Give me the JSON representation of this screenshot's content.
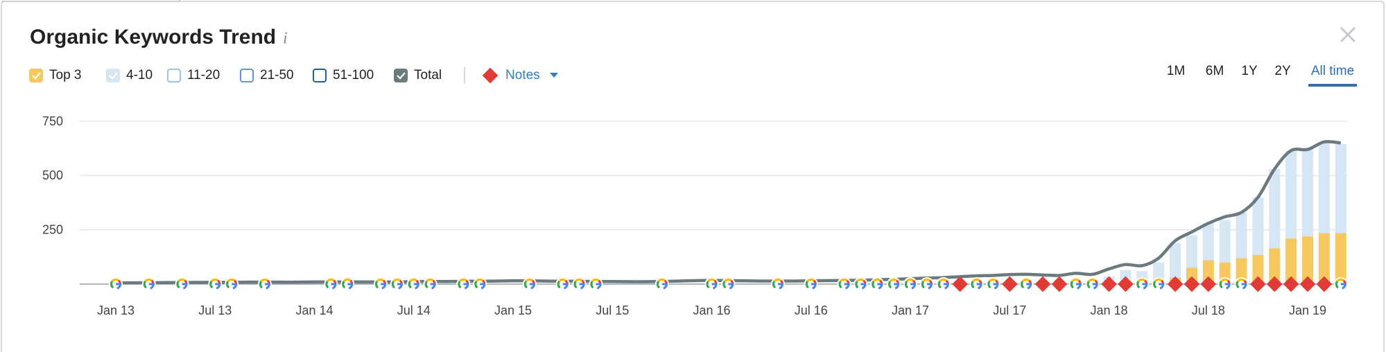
{
  "title": "Organic Keywords Trend",
  "info_icon": "i",
  "notes_label": "Notes",
  "ranges": [
    "1M",
    "6M",
    "1Y",
    "2Y",
    "All time"
  ],
  "selected_range": 4,
  "chart_data": {
    "type": "stacked-bar-line",
    "x": [
      "2013-01",
      "2013-02",
      "2013-03",
      "2013-04",
      "2013-05",
      "2013-06",
      "2013-07",
      "2013-08",
      "2013-09",
      "2013-10",
      "2013-11",
      "2013-12",
      "2014-01",
      "2014-02",
      "2014-03",
      "2014-04",
      "2014-05",
      "2014-06",
      "2014-07",
      "2014-08",
      "2014-09",
      "2014-10",
      "2014-11",
      "2014-12",
      "2015-01",
      "2015-02",
      "2015-03",
      "2015-04",
      "2015-05",
      "2015-06",
      "2015-07",
      "2015-08",
      "2015-09",
      "2015-10",
      "2015-11",
      "2015-12",
      "2016-01",
      "2016-02",
      "2016-03",
      "2016-04",
      "2016-05",
      "2016-06",
      "2016-07",
      "2016-08",
      "2016-09",
      "2016-10",
      "2016-11",
      "2016-12",
      "2017-01",
      "2017-02",
      "2017-03",
      "2017-04",
      "2017-05",
      "2017-06",
      "2017-07",
      "2017-08",
      "2017-09",
      "2017-10",
      "2017-11",
      "2017-12",
      "2018-01",
      "2018-02",
      "2018-03",
      "2018-04",
      "2018-05",
      "2018-06",
      "2018-07",
      "2018-08",
      "2018-09",
      "2018-10",
      "2018-11",
      "2018-12",
      "2019-01",
      "2019-02",
      "2019-03"
    ],
    "xticks": [
      {
        "value": "2013-01",
        "label": "Jan 13"
      },
      {
        "value": "2013-07",
        "label": "Jul 13"
      },
      {
        "value": "2014-01",
        "label": "Jan 14"
      },
      {
        "value": "2014-07",
        "label": "Jul 14"
      },
      {
        "value": "2015-01",
        "label": "Jan 15"
      },
      {
        "value": "2015-07",
        "label": "Jul 15"
      },
      {
        "value": "2016-01",
        "label": "Jan 16"
      },
      {
        "value": "2016-07",
        "label": "Jul 16"
      },
      {
        "value": "2017-01",
        "label": "Jan 17"
      },
      {
        "value": "2017-07",
        "label": "Jul 17"
      },
      {
        "value": "2018-01",
        "label": "Jan 18"
      },
      {
        "value": "2018-07",
        "label": "Jul 18"
      },
      {
        "value": "2019-01",
        "label": "Jan 19"
      }
    ],
    "ylim": [
      0,
      750
    ],
    "yticks": [
      250,
      500,
      750
    ],
    "grid": true,
    "series": [
      {
        "name": "Top 3",
        "color": "#f6c85f",
        "kind": "bar",
        "checked": true,
        "values": [
          0,
          0,
          0,
          0,
          0,
          0,
          0,
          0,
          0,
          0,
          0,
          0,
          0,
          0,
          0,
          0,
          0,
          0,
          0,
          0,
          0,
          0,
          0,
          0,
          0,
          0,
          0,
          0,
          0,
          0,
          0,
          0,
          0,
          0,
          0,
          0,
          0,
          0,
          0,
          0,
          0,
          0,
          0,
          0,
          0,
          0,
          0,
          0,
          0,
          0,
          0,
          0,
          0,
          0,
          0,
          0,
          0,
          0,
          0,
          3,
          10,
          15,
          15,
          20,
          30,
          75,
          110,
          100,
          120,
          135,
          165,
          210,
          220,
          235,
          235
        ]
      },
      {
        "name": "4-10",
        "color": "#d7e6f4",
        "kind": "bar",
        "checked": true,
        "values": [
          0,
          0,
          0,
          0,
          0,
          0,
          0,
          0,
          0,
          0,
          0,
          0,
          0,
          0,
          0,
          0,
          0,
          0,
          0,
          0,
          0,
          0,
          0,
          0,
          0,
          0,
          0,
          0,
          0,
          0,
          0,
          0,
          0,
          0,
          0,
          0,
          0,
          0,
          0,
          0,
          0,
          0,
          0,
          0,
          0,
          0,
          0,
          0,
          0,
          0,
          0,
          0,
          0,
          0,
          0,
          0,
          0,
          0,
          0,
          10,
          25,
          50,
          45,
          80,
          160,
          150,
          170,
          195,
          210,
          265,
          365,
          405,
          400,
          415,
          410
        ]
      },
      {
        "name": "Total",
        "color": "#6b7a7f",
        "kind": "line",
        "checked": true,
        "values": [
          5,
          6,
          6,
          7,
          7,
          8,
          8,
          8,
          9,
          9,
          9,
          9,
          10,
          10,
          10,
          10,
          10,
          10,
          11,
          12,
          12,
          13,
          13,
          14,
          15,
          15,
          14,
          13,
          13,
          12,
          12,
          11,
          11,
          12,
          14,
          16,
          17,
          16,
          15,
          14,
          14,
          14,
          15,
          16,
          17,
          18,
          20,
          22,
          25,
          28,
          30,
          34,
          38,
          40,
          44,
          45,
          42,
          40,
          50,
          45,
          70,
          90,
          85,
          120,
          200,
          240,
          280,
          310,
          330,
          400,
          530,
          615,
          620,
          655,
          650
        ]
      }
    ],
    "hidden_series": [
      {
        "name": "11-20",
        "color": "#9cc3e8"
      },
      {
        "name": "21-50",
        "color": "#5c9ad6"
      },
      {
        "name": "51-100",
        "color": "#1f5ea8"
      }
    ],
    "google_updates": [
      "2013-01",
      "2013-03",
      "2013-05",
      "2013-07",
      "2013-08",
      "2013-10",
      "2014-02",
      "2014-03",
      "2014-05",
      "2014-06",
      "2014-07",
      "2014-08",
      "2014-10",
      "2014-11",
      "2015-02",
      "2015-04",
      "2015-05",
      "2015-06",
      "2015-10",
      "2016-01",
      "2016-02",
      "2016-05",
      "2016-07",
      "2016-09",
      "2016-10",
      "2016-11",
      "2016-12",
      "2017-01",
      "2017-02",
      "2017-03",
      "2017-05",
      "2017-06",
      "2017-08",
      "2017-11",
      "2017-12",
      "2018-03",
      "2018-04",
      "2018-08",
      "2018-09",
      "2019-03"
    ],
    "notes": [
      "2017-04",
      "2017-07",
      "2017-09",
      "2017-10",
      "2018-01",
      "2018-02",
      "2018-05",
      "2018-06",
      "2018-07",
      "2018-10",
      "2018-11",
      "2018-12",
      "2019-01",
      "2019-02"
    ],
    "notes_color": "#e03b36"
  }
}
